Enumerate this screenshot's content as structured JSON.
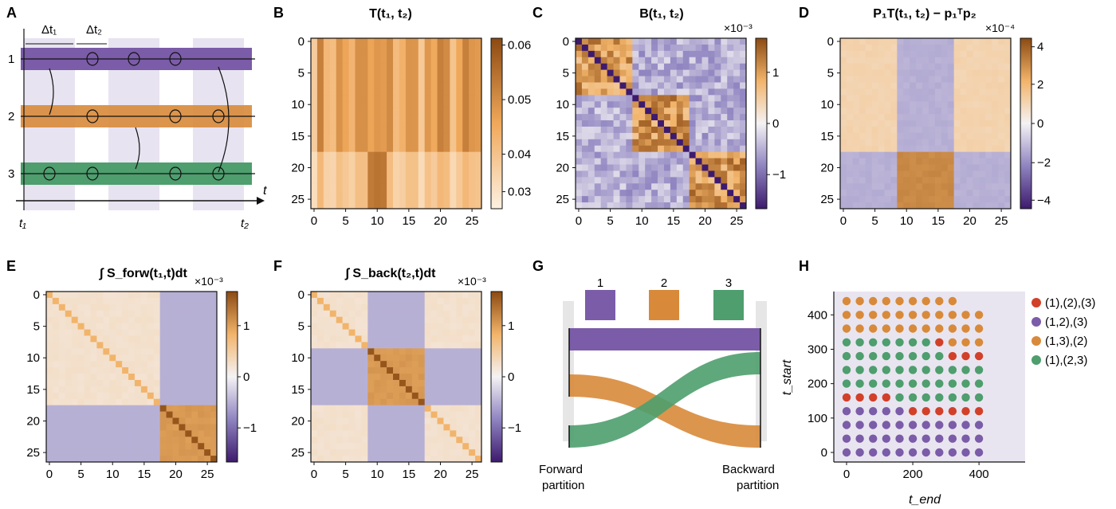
{
  "panels": {
    "A": {
      "letter": "A",
      "rows": [
        "1",
        "2",
        "3"
      ],
      "dt1": "Δt₁",
      "dt2": "Δt₂",
      "t_axis": "t",
      "t1": "t₁",
      "t2": "t₂"
    },
    "B": {
      "letter": "B",
      "title": "T(t₁, t₂)",
      "cbar_ticks": [
        "0.06",
        "0.05",
        "0.04",
        "0.03"
      ]
    },
    "C": {
      "letter": "C",
      "title": "B(t₁, t₂)",
      "exponent": "×10⁻³",
      "cbar_ticks": [
        "1",
        "0",
        "−1"
      ]
    },
    "D": {
      "letter": "D",
      "title": "P₁T(t₁, t₂) − p₁ᵀp₂",
      "exponent": "×10⁻⁴",
      "cbar_ticks": [
        "4",
        "2",
        "0",
        "−2",
        "−4"
      ]
    },
    "E": {
      "letter": "E",
      "title": "∫ S_forw(t₁,t)dt",
      "exponent": "×10⁻³",
      "cbar_ticks": [
        "1",
        "0",
        "−1"
      ]
    },
    "F": {
      "letter": "F",
      "title": "∫ S_back(t₂,t)dt",
      "exponent": "×10⁻³",
      "cbar_ticks": [
        "1",
        "0",
        "−1"
      ]
    },
    "G": {
      "letter": "G",
      "labels": [
        "1",
        "2",
        "3"
      ],
      "forward": [
        "Forward",
        "partition"
      ],
      "backward": [
        "Backward",
        "partition"
      ]
    },
    "H": {
      "letter": "H",
      "xlabel": "t_end",
      "ylabel": "t_start",
      "xticks": [
        "0",
        "200",
        "400"
      ],
      "yticks": [
        "0",
        "100",
        "200",
        "300",
        "400"
      ],
      "legend": [
        "(1),(2),(3)",
        "(1,2),(3)",
        "(1,3),(2)",
        "(1),(2,3)"
      ]
    }
  },
  "matrix_ticks": [
    "0",
    "5",
    "10",
    "15",
    "20",
    "25"
  ],
  "colors": {
    "purple": "#7b5ca8",
    "orange": "#d88a3a",
    "green": "#4e9e6e",
    "red": "#d2402a",
    "lavender": "#e6e1ee"
  },
  "chart_data": {
    "type": "scatter",
    "panel": "H",
    "xlabel": "t_end",
    "ylabel": "t_start",
    "xlim": [
      0,
      450
    ],
    "ylim": [
      0,
      450
    ],
    "x_step": 40,
    "y_step": 40,
    "categories": [
      "(1),(2),(3)",
      "(1,2),(3)",
      "(1,3),(2)",
      "(1),(2,3)"
    ],
    "rows": [
      {
        "t_start": 440,
        "classes": "222222222"
      },
      {
        "t_start": 400,
        "classes": "22222222222"
      },
      {
        "t_start": 360,
        "classes": "22222222222"
      },
      {
        "t_start": 320,
        "classes": "33333330222"
      },
      {
        "t_start": 280,
        "classes": "33333333000"
      },
      {
        "t_start": 240,
        "classes": "33333333333"
      },
      {
        "t_start": 200,
        "classes": "33333333333"
      },
      {
        "t_start": 160,
        "classes": "00003333333"
      },
      {
        "t_start": 120,
        "classes": "11111000000"
      },
      {
        "t_start": 80,
        "classes": "11111111111"
      },
      {
        "t_start": 40,
        "classes": "11111111111"
      },
      {
        "t_start": 0,
        "classes": "11111111111"
      }
    ]
  }
}
